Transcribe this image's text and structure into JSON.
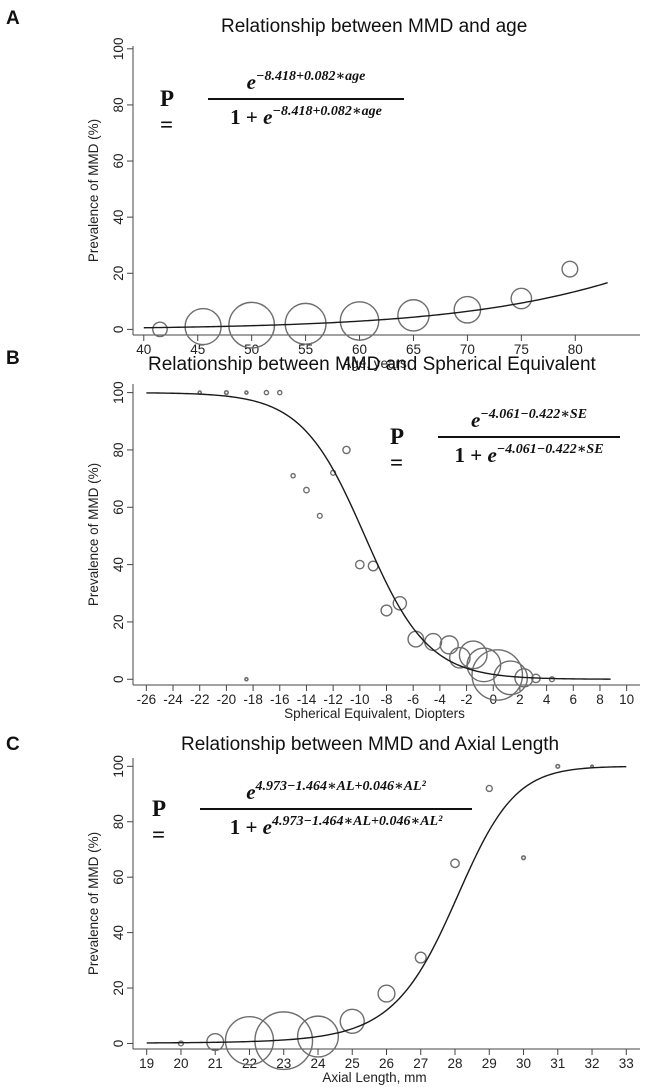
{
  "chart_data": [
    {
      "type": "scatter",
      "panel_letter": "A",
      "title": "Relationship between MMD and age",
      "xlabel": "Age, years",
      "ylabel": "Prevalence of MMD (%)",
      "xlim": [
        39,
        86
      ],
      "ylim": [
        -2,
        101
      ],
      "xticks": [
        40,
        45,
        50,
        55,
        60,
        65,
        70,
        75,
        80
      ],
      "yticks": [
        0,
        20,
        40,
        60,
        80,
        100
      ],
      "grid": false,
      "points": [
        {
          "x": 41.5,
          "y": 0,
          "size": 1.2
        },
        {
          "x": 45.5,
          "y": 1,
          "size": 3.0
        },
        {
          "x": 50,
          "y": 1.5,
          "size": 3.8
        },
        {
          "x": 55,
          "y": 2,
          "size": 3.4
        },
        {
          "x": 60,
          "y": 3,
          "size": 3.2
        },
        {
          "x": 65,
          "y": 5,
          "size": 2.6
        },
        {
          "x": 70,
          "y": 7,
          "size": 2.2
        },
        {
          "x": 75,
          "y": 11,
          "size": 1.7
        },
        {
          "x": 79.5,
          "y": 21.5,
          "size": 1.3
        }
      ],
      "fit": {
        "a": -8.418,
        "b": 0.082,
        "c": 0,
        "variable": "age",
        "x_range": [
          40,
          83
        ]
      },
      "formula": {
        "lhs": "P =",
        "num_exp": "−8.418+0.082∗age",
        "den_prefix": "1 +",
        "den_exp": "−8.418+0.082∗age"
      }
    },
    {
      "type": "scatter",
      "panel_letter": "B",
      "title": "Relationship between MMD and Spherical Equivalent",
      "xlabel": "Spherical Equivalent, Diopters",
      "ylabel": "Prevalence of MMD (%)",
      "xlim": [
        -27,
        11
      ],
      "ylim": [
        -2,
        103
      ],
      "xticks": [
        -26,
        -24,
        -22,
        -20,
        -18,
        -16,
        -14,
        -12,
        -10,
        -8,
        -6,
        -4,
        -2,
        0,
        2,
        4,
        6,
        8,
        10
      ],
      "yticks": [
        0,
        20,
        40,
        60,
        80,
        100
      ],
      "grid": false,
      "points": [
        {
          "x": -22,
          "y": 100,
          "size": 0.25
        },
        {
          "x": -20,
          "y": 100,
          "size": 0.3
        },
        {
          "x": -18.5,
          "y": 100,
          "size": 0.25
        },
        {
          "x": -17,
          "y": 100,
          "size": 0.35
        },
        {
          "x": -16,
          "y": 100,
          "size": 0.35
        },
        {
          "x": -18.5,
          "y": 0,
          "size": 0.25
        },
        {
          "x": -15,
          "y": 71,
          "size": 0.35
        },
        {
          "x": -14,
          "y": 66,
          "size": 0.45
        },
        {
          "x": -13,
          "y": 57,
          "size": 0.4
        },
        {
          "x": -12,
          "y": 72,
          "size": 0.4
        },
        {
          "x": -11,
          "y": 80,
          "size": 0.6
        },
        {
          "x": -10,
          "y": 40,
          "size": 0.7
        },
        {
          "x": -9,
          "y": 39.5,
          "size": 0.8
        },
        {
          "x": -8,
          "y": 24,
          "size": 0.9
        },
        {
          "x": -7,
          "y": 26.5,
          "size": 1.1
        },
        {
          "x": -5.8,
          "y": 14,
          "size": 1.3
        },
        {
          "x": -4.5,
          "y": 13,
          "size": 1.4
        },
        {
          "x": -3.3,
          "y": 12,
          "size": 1.5
        },
        {
          "x": -2.5,
          "y": 7.5,
          "size": 1.7
        },
        {
          "x": -1.5,
          "y": 8.5,
          "size": 2.3
        },
        {
          "x": -0.7,
          "y": 5,
          "size": 2.8
        },
        {
          "x": 0.3,
          "y": 1.5,
          "size": 4.2
        },
        {
          "x": 1.3,
          "y": 0.5,
          "size": 2.8
        },
        {
          "x": 2.3,
          "y": 0.5,
          "size": 1.5
        },
        {
          "x": 3.2,
          "y": 0.3,
          "size": 0.7
        },
        {
          "x": 4.4,
          "y": 0,
          "size": 0.4
        }
      ],
      "fit": {
        "a": -4.061,
        "b": -0.422,
        "c": 0,
        "variable": "SE",
        "x_range": [
          -26,
          8.8
        ]
      },
      "formula": {
        "lhs": "P =",
        "num_exp": "−4.061−0.422∗SE",
        "den_prefix": "1 +",
        "den_exp": "−4.061−0.422∗SE"
      }
    },
    {
      "type": "scatter",
      "panel_letter": "C",
      "title": "Relationship between MMD and Axial Length",
      "xlabel": "Axial Length, mm",
      "ylabel": "Prevalence of MMD (%)",
      "xlim": [
        18.6,
        33.4
      ],
      "ylim": [
        -2,
        103
      ],
      "xticks": [
        19,
        20,
        21,
        22,
        23,
        24,
        25,
        26,
        27,
        28,
        29,
        30,
        31,
        32,
        33
      ],
      "yticks": [
        0,
        20,
        40,
        60,
        80,
        100
      ],
      "grid": false,
      "points": [
        {
          "x": 20,
          "y": 0,
          "size": 0.4
        },
        {
          "x": 21,
          "y": 0.5,
          "size": 1.4
        },
        {
          "x": 22,
          "y": 1,
          "size": 4.0
        },
        {
          "x": 23,
          "y": 1,
          "size": 4.8
        },
        {
          "x": 24,
          "y": 2.5,
          "size": 3.4
        },
        {
          "x": 25,
          "y": 8,
          "size": 2.0
        },
        {
          "x": 26,
          "y": 18,
          "size": 1.4
        },
        {
          "x": 27,
          "y": 31,
          "size": 0.9
        },
        {
          "x": 28,
          "y": 65,
          "size": 0.7
        },
        {
          "x": 29,
          "y": 92,
          "size": 0.5
        },
        {
          "x": 30,
          "y": 67,
          "size": 0.3
        },
        {
          "x": 31,
          "y": 100,
          "size": 0.3
        },
        {
          "x": 32,
          "y": 100,
          "size": 0.2
        }
      ],
      "fit": {
        "a": 4.973,
        "b": -1.464,
        "c": 0.046,
        "variable": "AL",
        "x_range": [
          19,
          33
        ]
      },
      "formula": {
        "lhs": "P =",
        "num_exp": "4.973−1.464∗AL+0.046∗AL²",
        "den_prefix": "1 +",
        "den_exp": "4.973−1.464∗AL+0.046∗AL²"
      }
    }
  ],
  "style": {
    "marker_color": "#6e6e6e",
    "curve_color": "#1a1a1a",
    "axis_color": "#444444",
    "background": "#ffffff"
  }
}
